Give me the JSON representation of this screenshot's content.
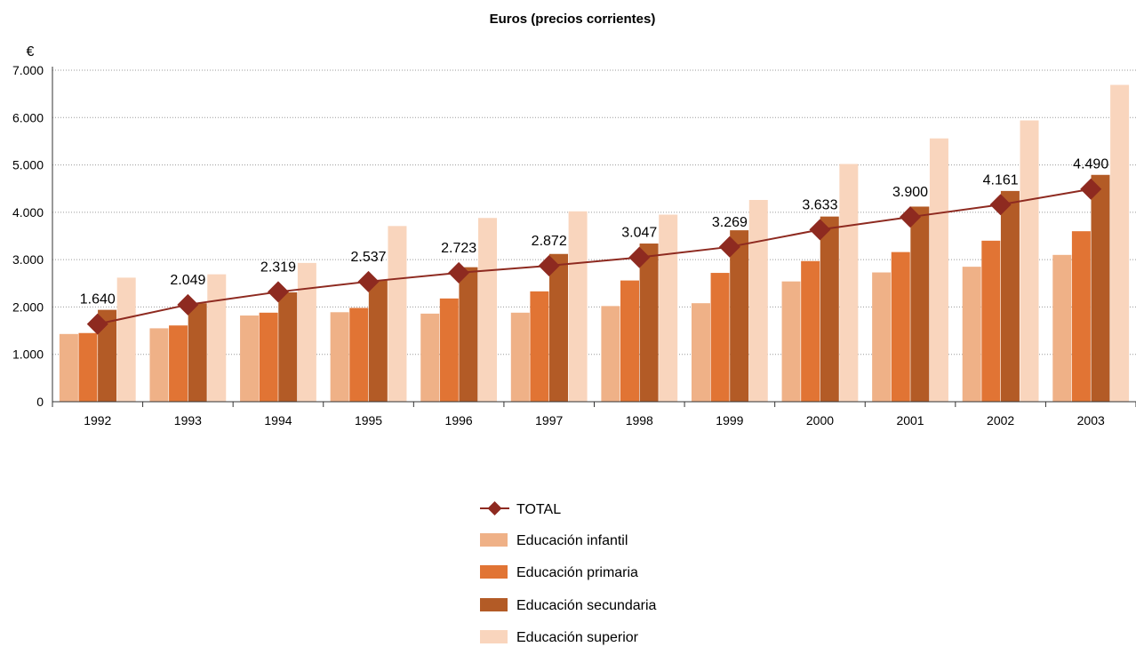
{
  "chart_data": {
    "type": "bar",
    "title": "Euros (precios corrientes)",
    "y_unit": "€",
    "ylim": [
      0,
      7000
    ],
    "y_ticks": [
      {
        "value": 0,
        "label": "0"
      },
      {
        "value": 1000,
        "label": "1.000"
      },
      {
        "value": 2000,
        "label": "2.000"
      },
      {
        "value": 3000,
        "label": "3.000"
      },
      {
        "value": 4000,
        "label": "4.000"
      },
      {
        "value": 5000,
        "label": "5.000"
      },
      {
        "value": 6000,
        "label": "6.000"
      },
      {
        "value": 7000,
        "label": "7.000"
      }
    ],
    "grid": true,
    "legend_position": "bottom",
    "categories": [
      "1992",
      "1993",
      "1994",
      "1995",
      "1996",
      "1997",
      "1998",
      "1999",
      "2000",
      "2001",
      "2002",
      "2003"
    ],
    "series": [
      {
        "name": "Educación infantil",
        "kind": "bar",
        "color": "#EFB187",
        "values": [
          1430,
          1550,
          1820,
          1890,
          1860,
          1880,
          2020,
          2080,
          2540,
          2730,
          2850,
          3100
        ]
      },
      {
        "name": "Educación primaria",
        "kind": "bar",
        "color": "#E17434",
        "values": [
          1450,
          1610,
          1880,
          1980,
          2180,
          2330,
          2560,
          2720,
          2970,
          3160,
          3400,
          3600
        ]
      },
      {
        "name": "Educación secundaria",
        "kind": "bar",
        "color": "#B35B26",
        "values": [
          1940,
          2080,
          2310,
          2560,
          2840,
          3120,
          3340,
          3620,
          3910,
          4120,
          4450,
          4790
        ]
      },
      {
        "name": "Educación superior",
        "kind": "bar",
        "color": "#F9D5BD",
        "values": [
          2620,
          2690,
          2930,
          3710,
          3880,
          4020,
          3950,
          4260,
          5020,
          5560,
          5940,
          6690
        ]
      },
      {
        "name": "TOTAL",
        "kind": "line",
        "color": "#8E2A20",
        "values": [
          1640,
          2049,
          2319,
          2537,
          2723,
          2872,
          3047,
          3269,
          3633,
          3900,
          4161,
          4490
        ],
        "data_labels": [
          "1.640",
          "2.049",
          "2.319",
          "2.537",
          "2.723",
          "2.872",
          "3.047",
          "3.269",
          "3.633",
          "3.900",
          "4.161",
          "4.490"
        ]
      }
    ]
  }
}
